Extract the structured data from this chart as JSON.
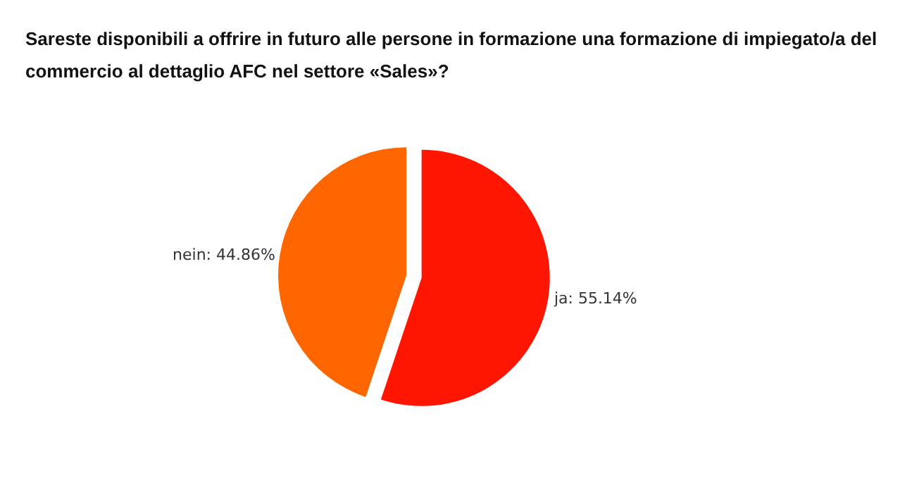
{
  "chart_data": {
    "type": "pie",
    "title": "Sareste disponibili a offrire in futuro alle persone in formazione una formazione di impiegato/a del commercio al dettaglio AFC nel settore «Sales»?",
    "categories": [
      "ja: 55.14%",
      "nein: 44.86%"
    ],
    "values": [
      55.14,
      44.86
    ],
    "colors": [
      "#ff1500",
      "#ff6600"
    ],
    "legend": false
  }
}
